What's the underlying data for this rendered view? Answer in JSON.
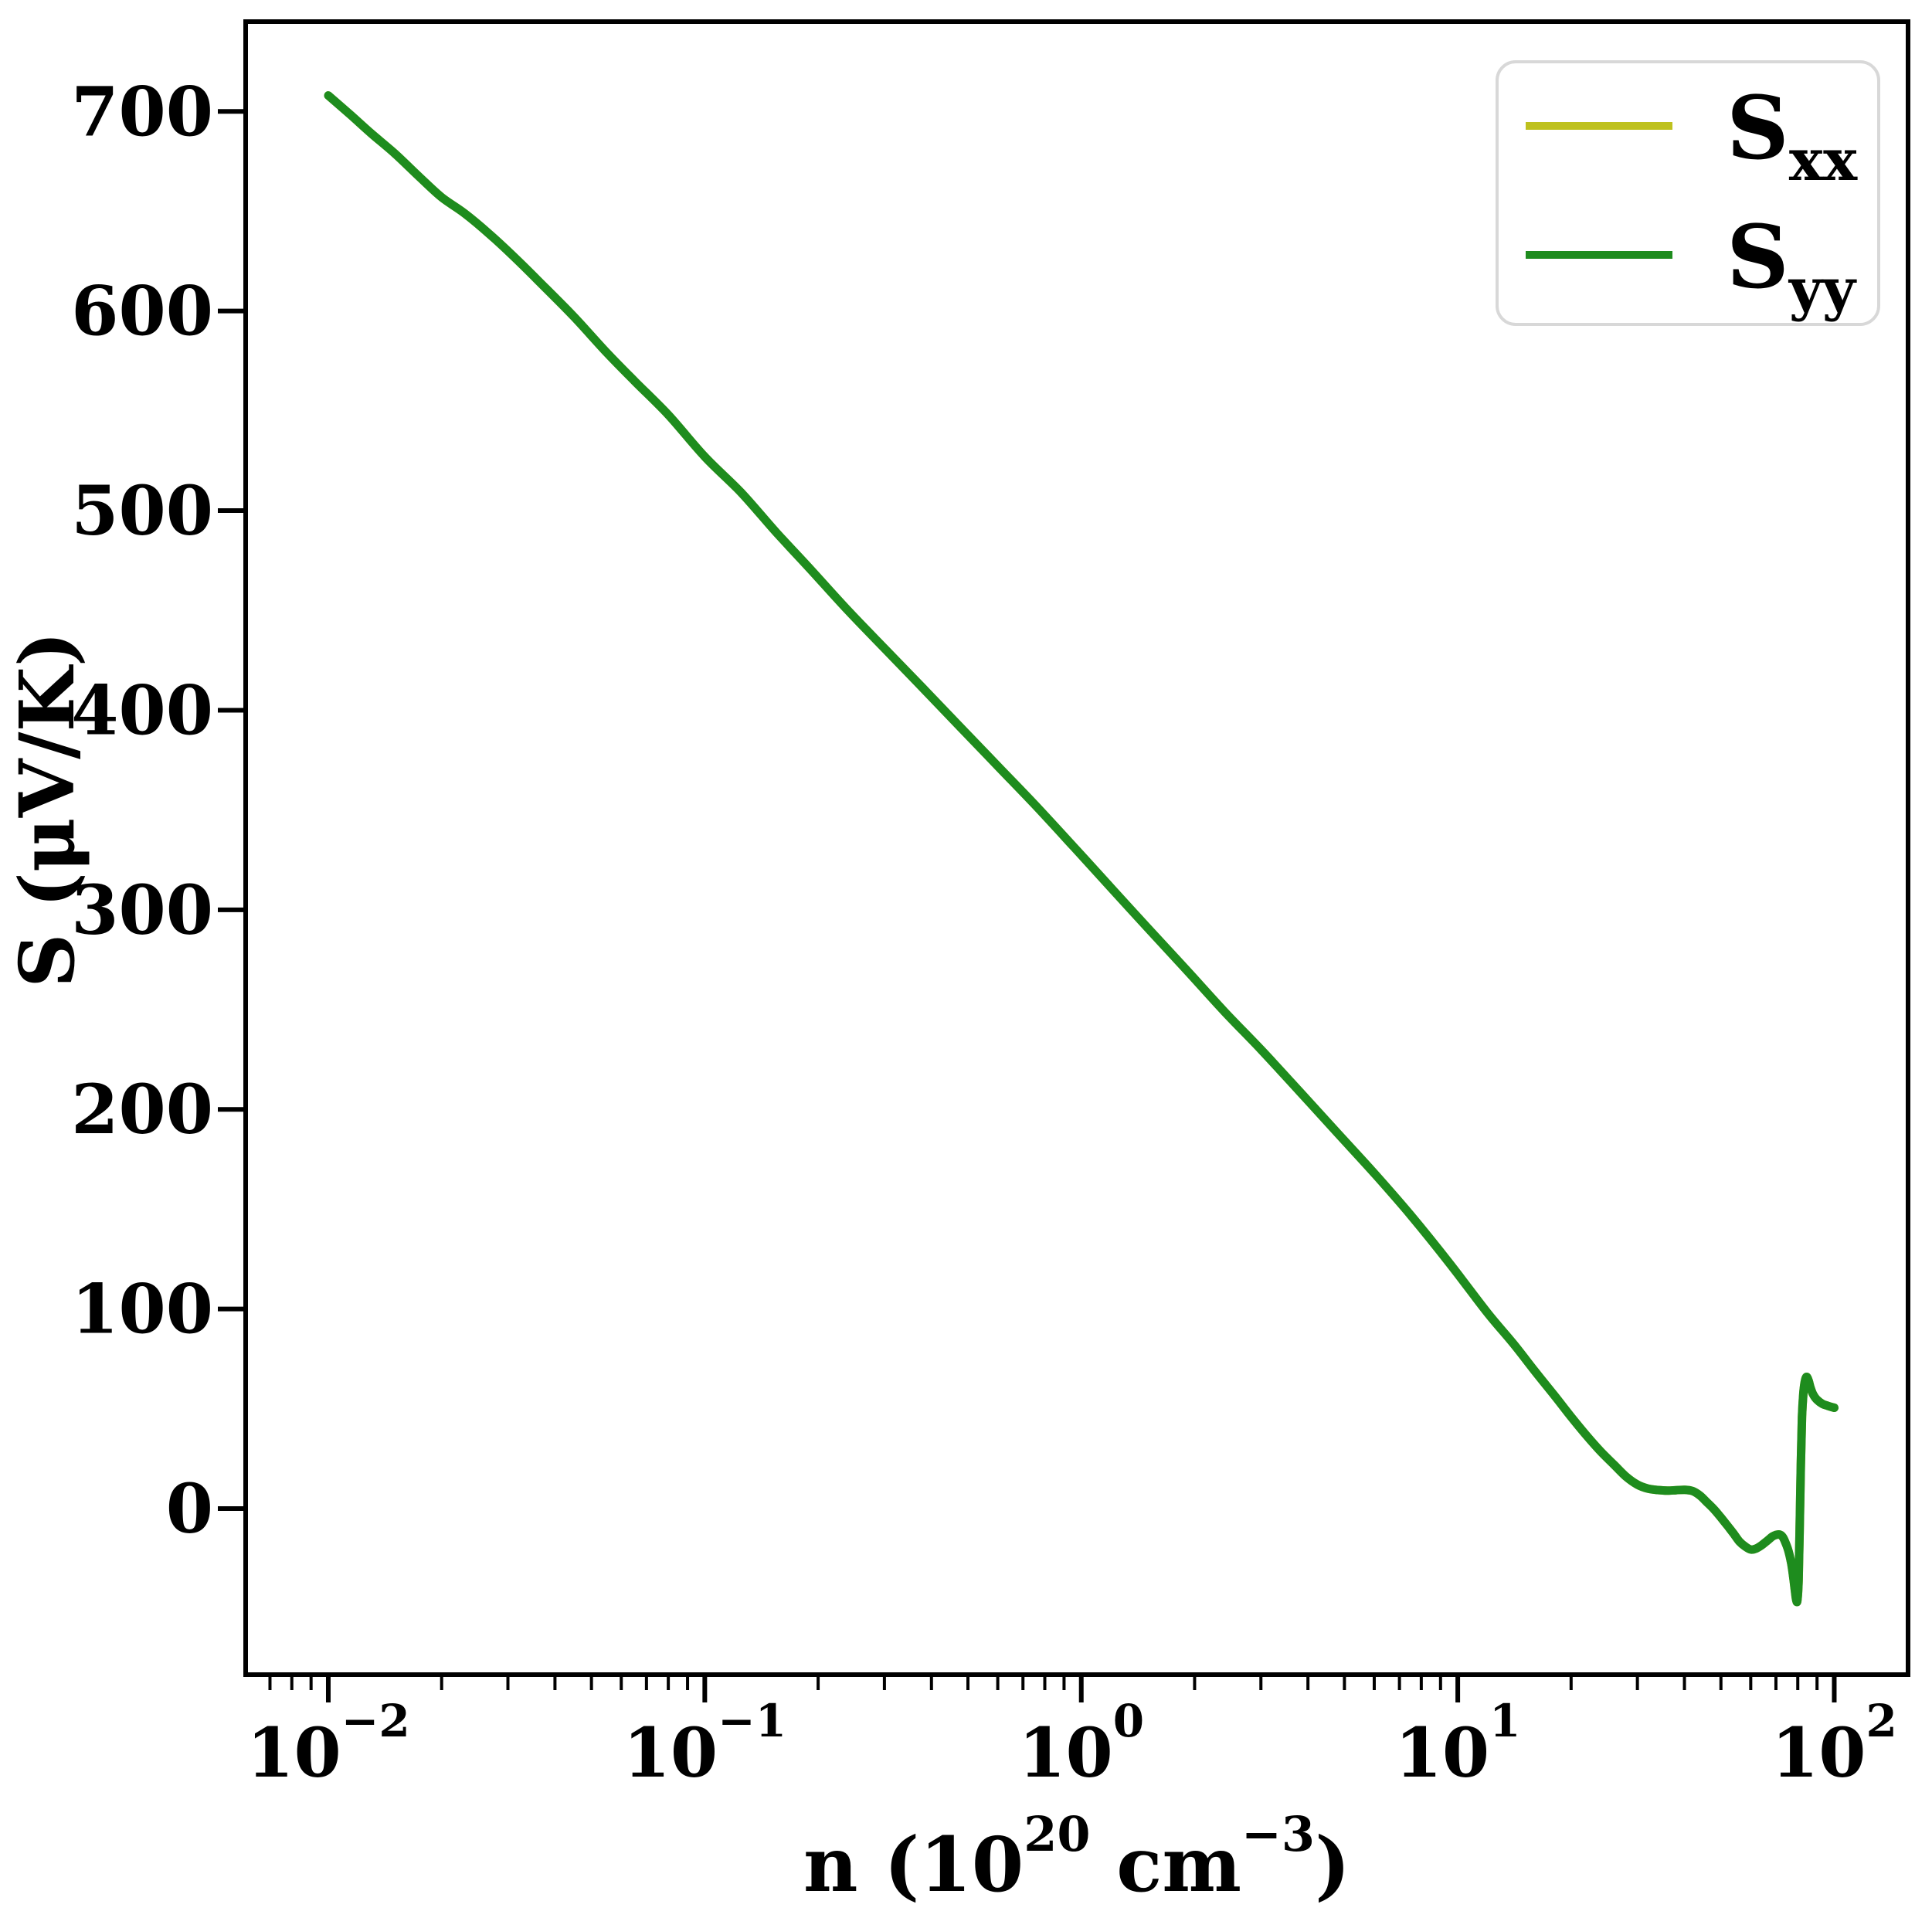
{
  "figure": {
    "background": "#ffffff",
    "axis_color": "#000000"
  },
  "legend": {
    "position": "upper right",
    "entries": [
      {
        "label_main": "S",
        "label_sub": "xx",
        "color": "#bec11e"
      },
      {
        "label_main": "S",
        "label_sub": "yy",
        "color": "#1e8c1e"
      }
    ]
  },
  "chart_data": {
    "type": "line",
    "title": "",
    "xlabel": "n (10^20 cm^-3)",
    "ylabel": "S (μV/K)",
    "xlabel_parts": [
      {
        "t": "n (10",
        "sup": false
      },
      {
        "t": "20",
        "sup": true
      },
      {
        "t": " cm",
        "sup": false
      },
      {
        "t": "−3",
        "sup": true
      },
      {
        "t": ")",
        "sup": false
      }
    ],
    "x_scale": "log",
    "grid": false,
    "legend_position": "upper right",
    "xlim": [
      0.006,
      157
    ],
    "ylim": [
      -83,
      745
    ],
    "x_tick_exponents": [
      -2,
      -1,
      0,
      1,
      2
    ],
    "y_ticks": [
      0,
      100,
      200,
      300,
      400,
      500,
      600,
      700
    ],
    "x": [
      0.01,
      0.0115,
      0.013,
      0.015,
      0.0175,
      0.02,
      0.023,
      0.027,
      0.032,
      0.038,
      0.045,
      0.055,
      0.065,
      0.08,
      0.1,
      0.125,
      0.155,
      0.19,
      0.24,
      0.3,
      0.38,
      0.48,
      0.6,
      0.75,
      0.95,
      1.2,
      1.5,
      1.9,
      2.4,
      3.0,
      3.8,
      4.8,
      6.0,
      7.5,
      9.5,
      12,
      14,
      16,
      18,
      20,
      22,
      24,
      26,
      28,
      30,
      32,
      34,
      36,
      38,
      40,
      42,
      44,
      46,
      48,
      50,
      52,
      54,
      56,
      58,
      60,
      62,
      64,
      66.5,
      68.5,
      70,
      71.5,
      72.8,
      74,
      75.5,
      76.8,
      77.8,
      78.5,
      79.2,
      79.8,
      80.4,
      80.9,
      81.5,
      82.1,
      82.8,
      83.6,
      84.5,
      85.5,
      86.5,
      88,
      90,
      93,
      96,
      100
    ],
    "series": [
      {
        "name": "S_xx",
        "color": "#bec11e",
        "values": [
          708,
          698,
          689,
          679,
          667,
          657,
          649,
          638,
          625,
          611,
          597,
          579,
          565,
          548,
          527,
          509,
          489,
          471,
          450,
          431,
          411,
          391,
          372,
          353,
          332,
          311,
          291,
          270,
          249,
          230,
          209,
          188,
          168,
          147,
          123,
          98,
          83,
          69,
          57,
          46,
          36.5,
          28.5,
          22,
          16,
          12,
          10,
          9.3,
          9.0,
          9.2,
          9.4,
          8.8,
          6.5,
          3.0,
          -0.5,
          -4.5,
          -8.5,
          -12.5,
          -16.5,
          -19,
          -20.5,
          -20,
          -18.5,
          -16,
          -14,
          -13.2,
          -13,
          -14,
          -16.5,
          -21,
          -27,
          -34,
          -40,
          -45.5,
          -46,
          -36,
          -12,
          22,
          46,
          58,
          64,
          66,
          64,
          60.5,
          57,
          54.5,
          52.5,
          51.5,
          50.5
        ]
      },
      {
        "name": "S_yy",
        "color": "#1e8c1e",
        "values": [
          708,
          698,
          689,
          679,
          667,
          657,
          649,
          638,
          625,
          611,
          597,
          579,
          565,
          548,
          527,
          509,
          489,
          471,
          450,
          431,
          411,
          391,
          372,
          353,
          332,
          311,
          291,
          270,
          249,
          230,
          209,
          188,
          168,
          147,
          123,
          98,
          83,
          69,
          57,
          46,
          36.5,
          28.5,
          22,
          16,
          12,
          10,
          9.3,
          9.0,
          9.2,
          9.4,
          8.8,
          6.5,
          3.0,
          -0.5,
          -4.5,
          -8.5,
          -12.5,
          -16.5,
          -19,
          -20.5,
          -20,
          -18.5,
          -16,
          -14,
          -13.2,
          -13,
          -14,
          -16.5,
          -21,
          -27,
          -34,
          -40,
          -45.5,
          -46,
          -36,
          -12,
          22,
          46,
          58,
          64,
          66,
          64,
          60.5,
          57,
          54.5,
          52.5,
          51.5,
          50.5
        ]
      }
    ]
  }
}
